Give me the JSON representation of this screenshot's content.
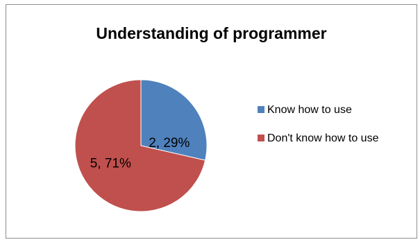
{
  "chart_data": {
    "type": "pie",
    "title": "Understanding of programmer",
    "slices": [
      {
        "label": "Know how to use",
        "value": 2,
        "percent": 29,
        "color": "#4f81bd",
        "data_label": "2, 29%"
      },
      {
        "label": "Don't know how to use",
        "value": 5,
        "percent": 71,
        "color": "#c0504d",
        "data_label": "5, 71%"
      }
    ],
    "legend_position": "right",
    "start_angle_deg": 0,
    "direction": "clockwise"
  }
}
